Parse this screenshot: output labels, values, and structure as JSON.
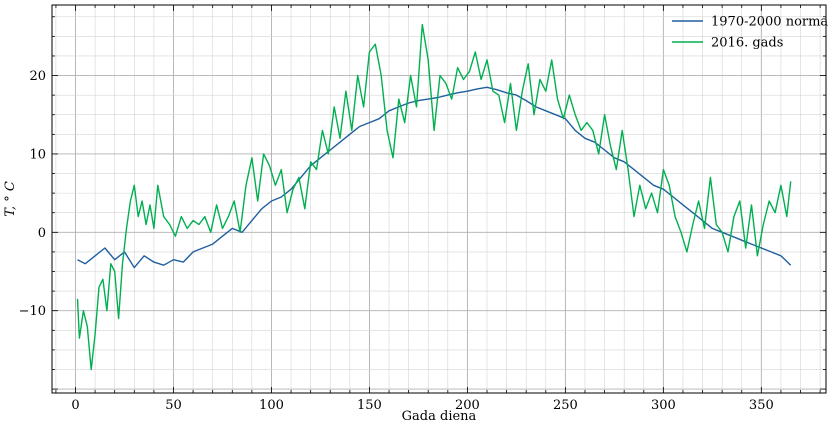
{
  "chart_data": {
    "type": "line",
    "title": "",
    "xlabel": "Gada diena",
    "ylabel": "T, ° C",
    "xlim": [
      -12,
      383
    ],
    "ylim": [
      -20.5,
      29
    ],
    "xticks": [
      0,
      50,
      100,
      150,
      200,
      250,
      300,
      350
    ],
    "xtick_labels": [
      "0",
      "50",
      "100",
      "150",
      "200",
      "250",
      "300",
      "350"
    ],
    "yticks": [
      -10,
      0,
      10,
      20
    ],
    "ytick_labels": [
      "−10",
      "0",
      "10",
      "20"
    ],
    "grid": true,
    "legend_position": "top-right",
    "series": [
      {
        "name": "1970-2000 norma",
        "color": "#1f5fa0",
        "x": [
          1,
          5,
          10,
          15,
          20,
          25,
          30,
          35,
          40,
          45,
          50,
          55,
          60,
          65,
          70,
          75,
          80,
          85,
          90,
          95,
          100,
          105,
          110,
          115,
          120,
          125,
          130,
          135,
          140,
          145,
          150,
          155,
          160,
          165,
          170,
          175,
          180,
          185,
          190,
          195,
          200,
          205,
          210,
          215,
          220,
          225,
          230,
          235,
          240,
          245,
          250,
          255,
          260,
          265,
          270,
          275,
          280,
          285,
          290,
          295,
          300,
          305,
          310,
          315,
          320,
          325,
          330,
          335,
          340,
          345,
          350,
          355,
          360,
          365
        ],
        "y": [
          -3.5,
          -4.0,
          -3.0,
          -2.0,
          -3.5,
          -2.5,
          -4.5,
          -3.0,
          -3.8,
          -4.2,
          -3.5,
          -3.8,
          -2.5,
          -2.0,
          -1.5,
          -0.5,
          0.5,
          0.0,
          1.5,
          3.0,
          4.0,
          4.5,
          5.5,
          7.0,
          8.5,
          9.5,
          10.5,
          11.5,
          12.5,
          13.5,
          14.0,
          14.5,
          15.5,
          16.0,
          16.5,
          16.8,
          17.0,
          17.2,
          17.5,
          17.8,
          18.0,
          18.3,
          18.5,
          18.2,
          17.8,
          17.5,
          16.8,
          16.0,
          15.5,
          15.0,
          14.5,
          13.0,
          12.0,
          11.5,
          10.5,
          9.5,
          9.0,
          8.0,
          7.0,
          6.0,
          5.5,
          4.5,
          3.5,
          2.5,
          1.5,
          0.5,
          0.0,
          -0.5,
          -1.0,
          -1.5,
          -2.0,
          -2.5,
          -3.0,
          -4.2
        ]
      },
      {
        "name": "2016. gads",
        "color": "#00b050",
        "x": [
          1,
          2,
          4,
          6,
          8,
          10,
          12,
          14,
          16,
          18,
          20,
          22,
          24,
          26,
          28,
          30,
          32,
          34,
          36,
          38,
          40,
          42,
          45,
          48,
          51,
          54,
          57,
          60,
          63,
          66,
          69,
          72,
          75,
          78,
          81,
          84,
          87,
          90,
          93,
          96,
          99,
          102,
          105,
          108,
          111,
          114,
          117,
          120,
          123,
          126,
          129,
          132,
          135,
          138,
          141,
          144,
          147,
          150,
          153,
          156,
          159,
          162,
          165,
          168,
          171,
          174,
          177,
          180,
          183,
          186,
          189,
          192,
          195,
          198,
          201,
          204,
          207,
          210,
          213,
          216,
          219,
          222,
          225,
          228,
          231,
          234,
          237,
          240,
          243,
          246,
          249,
          252,
          255,
          258,
          261,
          264,
          267,
          270,
          273,
          276,
          279,
          282,
          285,
          288,
          291,
          294,
          297,
          300,
          303,
          306,
          309,
          312,
          315,
          318,
          321,
          324,
          327,
          330,
          333,
          336,
          339,
          342,
          345,
          348,
          351,
          354,
          357,
          360,
          363,
          365
        ],
        "y": [
          -8.5,
          -13.5,
          -10.0,
          -12.0,
          -17.5,
          -13.0,
          -7.0,
          -6.0,
          -10.0,
          -4.0,
          -5.0,
          -11.0,
          -4.0,
          0.5,
          4.0,
          6.0,
          2.0,
          4.0,
          1.0,
          3.5,
          0.5,
          6.0,
          2.0,
          1.0,
          -0.5,
          2.0,
          0.5,
          1.5,
          1.0,
          2.0,
          0.0,
          3.5,
          0.5,
          2.0,
          4.0,
          0.0,
          6.0,
          9.5,
          4.0,
          10.0,
          8.5,
          6.0,
          8.0,
          2.5,
          5.5,
          7.0,
          3.0,
          9.0,
          8.0,
          13.0,
          10.0,
          16.0,
          12.0,
          18.0,
          13.0,
          20.0,
          16.0,
          23.0,
          24.0,
          20.0,
          13.0,
          9.5,
          17.0,
          14.0,
          20.0,
          16.0,
          26.5,
          22.0,
          13.0,
          20.0,
          19.0,
          17.0,
          21.0,
          19.5,
          20.5,
          23.0,
          19.5,
          22.0,
          18.0,
          17.5,
          14.0,
          19.0,
          13.0,
          18.0,
          21.5,
          15.0,
          19.5,
          18.0,
          22.0,
          17.0,
          14.5,
          17.5,
          15.0,
          13.0,
          14.0,
          13.0,
          10.0,
          15.0,
          11.0,
          8.0,
          13.0,
          8.0,
          2.0,
          6.0,
          3.0,
          5.0,
          2.5,
          8.0,
          6.0,
          2.0,
          0.0,
          -2.5,
          1.0,
          4.0,
          0.5,
          7.0,
          1.0,
          0.0,
          -2.5,
          2.0,
          4.0,
          -2.0,
          3.5,
          -3.0,
          1.0,
          4.0,
          2.5,
          6.0,
          2.0,
          6.5
        ]
      }
    ]
  }
}
